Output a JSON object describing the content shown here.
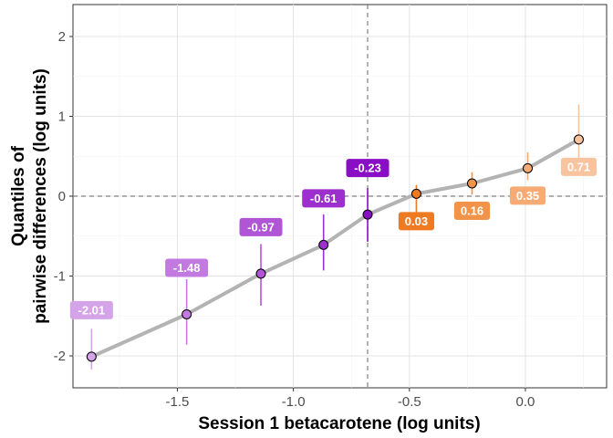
{
  "chart_data": {
    "type": "line",
    "title": "",
    "xlabel": "Session 1 betacarotene (log units)",
    "ylabel_lines": [
      "Quantiles of",
      "pairwise differences (log units)"
    ],
    "xlim": [
      -1.95,
      0.35
    ],
    "ylim": [
      -2.4,
      2.4
    ],
    "x_ticks": [
      -1.5,
      -1.0,
      -0.5,
      0.0
    ],
    "x_tick_labels": [
      "-1.5",
      "-1.0",
      "-0.5",
      "0.0"
    ],
    "y_ticks": [
      -2,
      -1,
      0,
      1,
      2
    ],
    "y_tick_labels": [
      "-2",
      "-1",
      "0",
      "1",
      "2"
    ],
    "grid": true,
    "reference_lines": {
      "x": -0.68,
      "y": 0
    },
    "line_color": "#b3b3b3",
    "points": [
      {
        "x": -1.87,
        "y": -2.01,
        "lo": -2.17,
        "hi": -1.66,
        "label": "-2.01",
        "color": "#d4a3e8"
      },
      {
        "x": -1.46,
        "y": -1.48,
        "lo": -1.86,
        "hi": -1.04,
        "label": "-1.48",
        "color": "#c27ae0"
      },
      {
        "x": -1.14,
        "y": -0.97,
        "lo": -1.37,
        "hi": -0.6,
        "label": "-0.97",
        "color": "#b055d6"
      },
      {
        "x": -0.87,
        "y": -0.61,
        "lo": -0.93,
        "hi": -0.23,
        "label": "-0.61",
        "color": "#9c2fcd"
      },
      {
        "x": -0.68,
        "y": -0.23,
        "lo": -0.57,
        "hi": 0.1,
        "label": "-0.23",
        "color": "#8a0ec4"
      },
      {
        "x": -0.47,
        "y": 0.03,
        "lo": -0.2,
        "hi": 0.14,
        "label": "0.03",
        "color": "#ee7a22"
      },
      {
        "x": -0.23,
        "y": 0.16,
        "lo": 0.02,
        "hi": 0.3,
        "label": "0.16",
        "color": "#f2934a"
      },
      {
        "x": 0.01,
        "y": 0.35,
        "lo": 0.2,
        "hi": 0.55,
        "label": "0.35",
        "color": "#f5ab73"
      },
      {
        "x": 0.23,
        "y": 0.71,
        "lo": 0.42,
        "hi": 1.15,
        "label": "0.71",
        "color": "#f7c49f"
      }
    ]
  }
}
